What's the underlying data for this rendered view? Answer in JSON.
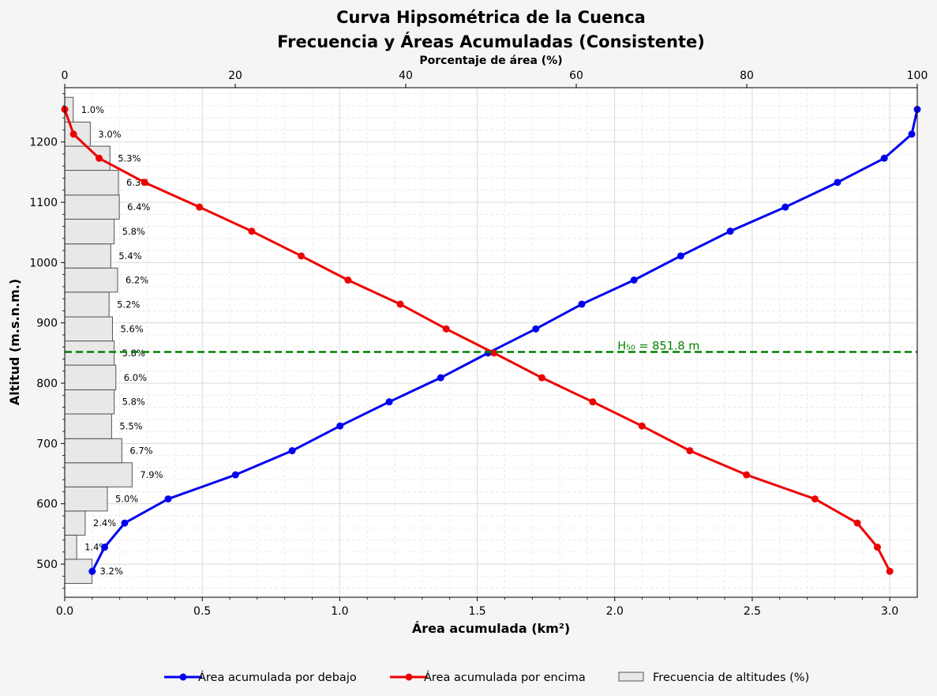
{
  "chart_data": {
    "type": "line",
    "title": [
      "Curva Hipsométrica de la Cuenca",
      "Frecuencia y Áreas Acumuladas (Consistente)"
    ],
    "xlabel": "Área acumulada (km²)",
    "ylabel": "Altitud (m.s.n.m.)",
    "x2label": "Porcentaje de área (%)",
    "xlim": [
      0,
      3.1
    ],
    "ylim": [
      445,
      1290
    ],
    "x2lim": [
      0,
      100
    ],
    "xticks": [
      "0.0",
      "0.5",
      "1.0",
      "1.5",
      "2.0",
      "2.5",
      "3.0"
    ],
    "yticks": [
      "500",
      "600",
      "700",
      "800",
      "900",
      "1000",
      "1100",
      "1200"
    ],
    "x2ticks": [
      "0",
      "20",
      "40",
      "60",
      "80",
      "100"
    ],
    "grid": true,
    "legend_position": "bottom-center",
    "colors": {
      "below": "#0000ee",
      "above": "#ee0000",
      "h50": "#008000",
      "bar_fill": "#e8e8e8",
      "bar_edge": "#555555"
    },
    "altitudes": [
      488,
      528,
      568,
      608,
      648,
      688,
      729,
      769,
      809,
      850,
      890,
      931,
      971,
      1011,
      1052,
      1092,
      1133,
      1173,
      1213,
      1254
    ],
    "series": [
      {
        "name": "Área acumulada por debajo",
        "values": [
          0.1,
          0.145,
          0.218,
          0.376,
          0.621,
          0.827,
          1.001,
          1.18,
          1.367,
          1.539,
          1.713,
          1.88,
          2.07,
          2.24,
          2.42,
          2.62,
          2.81,
          2.98,
          3.08,
          3.1
        ]
      },
      {
        "name": "Área acumulada por encima",
        "values": [
          3.0,
          2.955,
          2.882,
          2.728,
          2.479,
          2.273,
          2.099,
          1.92,
          1.735,
          1.561,
          1.387,
          1.22,
          1.03,
          0.86,
          0.68,
          0.49,
          0.29,
          0.125,
          0.032,
          0.0
        ]
      }
    ],
    "frequency": {
      "name": "Frecuencia de altitudes (%)",
      "bins": [
        {
          "low": 468,
          "high": 508,
          "pct": 3.2,
          "label": "3.2%"
        },
        {
          "low": 508,
          "high": 548,
          "pct": 1.4,
          "label": "1.4%"
        },
        {
          "low": 548,
          "high": 588,
          "pct": 2.4,
          "label": "2.4%"
        },
        {
          "low": 588,
          "high": 628,
          "pct": 5.0,
          "label": "5.0%"
        },
        {
          "low": 628,
          "high": 668,
          "pct": 7.9,
          "label": "7.9%"
        },
        {
          "low": 668,
          "high": 708,
          "pct": 6.7,
          "label": "6.7%"
        },
        {
          "low": 708,
          "high": 749,
          "pct": 5.5,
          "label": "5.5%"
        },
        {
          "low": 749,
          "high": 789,
          "pct": 5.8,
          "label": "5.8%"
        },
        {
          "low": 789,
          "high": 830,
          "pct": 6.0,
          "label": "6.0%"
        },
        {
          "low": 830,
          "high": 870,
          "pct": 5.8,
          "label": "5.8%"
        },
        {
          "low": 870,
          "high": 910,
          "pct": 5.6,
          "label": "5.6%"
        },
        {
          "low": 910,
          "high": 951,
          "pct": 5.2,
          "label": "5.2%"
        },
        {
          "low": 951,
          "high": 991,
          "pct": 6.2,
          "label": "6.2%"
        },
        {
          "low": 991,
          "high": 1031,
          "pct": 5.4,
          "label": "5.4%"
        },
        {
          "low": 1031,
          "high": 1072,
          "pct": 5.8,
          "label": "5.8%"
        },
        {
          "low": 1072,
          "high": 1112,
          "pct": 6.4,
          "label": "6.4%"
        },
        {
          "low": 1112,
          "high": 1153,
          "pct": 6.3,
          "label": "6.3%"
        },
        {
          "low": 1153,
          "high": 1193,
          "pct": 5.3,
          "label": "5.3%"
        },
        {
          "low": 1193,
          "high": 1233,
          "pct": 3.0,
          "label": "3.0%"
        },
        {
          "low": 1233,
          "high": 1274,
          "pct": 1.0,
          "label": "1.0%"
        }
      ]
    },
    "h50": {
      "value": 851.8,
      "label": "H₅₀ = 851.8 m",
      "x_label_at": 2.01
    }
  }
}
